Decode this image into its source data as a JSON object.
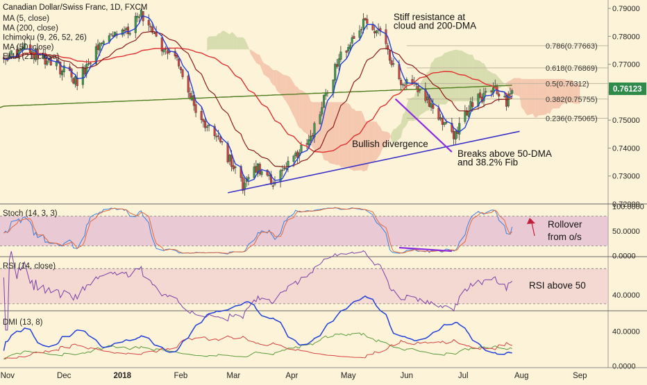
{
  "chart_data": [
    {
      "id": "price",
      "type": "candlestick",
      "instrument_label": "Canadian Dollar/Swiss Franc, 1D, FXCM",
      "indicator_labels": [
        "MA (5, close)",
        "MA (200, close)",
        "Ichimoku (9, 26, 52, 26)",
        "MA (50, close)",
        "EMA (21, close)"
      ],
      "ylim": [
        0.72,
        0.793
      ],
      "y_ticks": [
        "0.79000",
        "0.78000",
        "0.77000",
        "0.76000",
        "0.75000",
        "0.74000",
        "0.73000",
        "0.72000"
      ],
      "last_price": "0.76123",
      "x_labels": [
        "Nov",
        "Dec",
        "2018",
        "Feb",
        "Mar",
        "Apr",
        "May",
        "Jun",
        "Jul",
        "Aug",
        "Sep"
      ],
      "fib_levels": [
        {
          "label": "0.786(0.77663)",
          "value": 0.77663
        },
        {
          "label": "0.618(0.76869)",
          "value": 0.76869
        },
        {
          "label": "0.5(0.76312)",
          "value": 0.76312
        },
        {
          "label": "0.382(0.75755)",
          "value": 0.75755
        },
        {
          "label": "0.236(0.75065)",
          "value": 0.75065
        }
      ],
      "series_colors": {
        "ma5": "#1f3fd8",
        "ema21": "#8b1a1a",
        "ma50": "#e03030",
        "ma200": "#4e7a1e",
        "up": "#3c9b4c",
        "down": "#d04040"
      },
      "annotations": [
        {
          "text": "Stiff resistance at",
          "x": "2018-05-25",
          "y": 0.7858
        },
        {
          "text": "cloud and 200-DMA",
          "x": "2018-05-25",
          "y": 0.7827
        },
        {
          "text": "Bullish divergence",
          "x": "2018-05-03",
          "y": 0.7404
        },
        {
          "text": "Breaks above 50-DMA",
          "x": "2018-06-28",
          "y": 0.7369
        },
        {
          "text": "and 38.2% Fib",
          "x": "2018-06-28",
          "y": 0.7338
        }
      ]
    },
    {
      "id": "stoch",
      "type": "line",
      "label": "Stoch (14, 3, 3)",
      "ylim": [
        -2,
        102
      ],
      "y_ticks": [
        "100.0000",
        "50.0000",
        "0.0000"
      ],
      "band": [
        20,
        80
      ],
      "annotations": [
        {
          "text": "Rollover"
        },
        {
          "text": "from o/s"
        }
      ]
    },
    {
      "id": "rsi",
      "type": "line",
      "label": "RSI (14, close)",
      "ylim": [
        22,
        82
      ],
      "y_ticks": [
        "40.0000"
      ],
      "band": [
        30,
        70
      ],
      "annotations": [
        {
          "text": "RSI above 50"
        }
      ]
    },
    {
      "id": "dmi",
      "type": "line",
      "label": "DMI (13, 8)",
      "ylim": [
        -2,
        62
      ],
      "y_ticks": [
        "40.0000",
        "0.0000"
      ]
    }
  ]
}
